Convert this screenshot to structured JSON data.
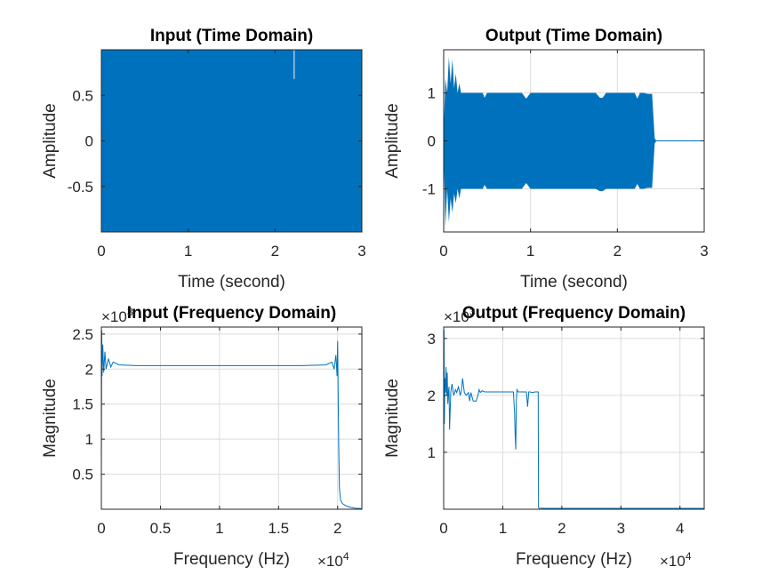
{
  "figure": {
    "background": "#ffffff",
    "series_color": "#0072BD",
    "grid": true
  },
  "chart_data": [
    {
      "id": "input_time",
      "type": "line",
      "title": "Input (Time Domain)",
      "xlabel": "Time (second)",
      "ylabel": "Amplitude",
      "xlim": [
        0,
        3
      ],
      "ylim": [
        -1,
        1
      ],
      "xticks": [
        0,
        1,
        2,
        3
      ],
      "xtick_labels": [
        "0",
        "1",
        "2",
        "3"
      ],
      "yticks": [
        -0.5,
        0,
        0.5
      ],
      "ytick_labels": [
        "-0.5",
        "0",
        "0.5"
      ],
      "x_multiplier": "",
      "y_multiplier": "",
      "envelope": {
        "x": [
          0,
          3
        ],
        "upper": [
          1,
          1
        ],
        "lower": [
          -1,
          -1
        ]
      },
      "spikes": [
        {
          "x": 2.22,
          "top": 0.68,
          "bottom": 1.0
        }
      ]
    },
    {
      "id": "output_time",
      "type": "line",
      "title": "Output (Time Domain)",
      "xlabel": "Time (second)",
      "ylabel": "Amplitude",
      "xlim": [
        0,
        3
      ],
      "ylim": [
        -1.9,
        1.9
      ],
      "xticks": [
        0,
        1,
        2,
        3
      ],
      "xtick_labels": [
        "0",
        "1",
        "2",
        "3"
      ],
      "yticks": [
        -1,
        0,
        1
      ],
      "ytick_labels": [
        "-1",
        "0",
        "1"
      ],
      "x_multiplier": "",
      "y_multiplier": "",
      "envelope": {
        "x": [
          0,
          0.02,
          0.04,
          0.06,
          0.08,
          0.1,
          0.12,
          0.14,
          0.16,
          0.18,
          0.2,
          0.3,
          0.45,
          0.47,
          0.5,
          0.9,
          0.95,
          1.0,
          1.75,
          1.8,
          1.83,
          1.87,
          2.2,
          2.23,
          2.26,
          2.3,
          2.35,
          2.4,
          2.43,
          2.45,
          2.5,
          3.0
        ],
        "upper": [
          0.2,
          1.3,
          1.0,
          1.75,
          1.2,
          1.7,
          1.1,
          1.4,
          1.0,
          1.2,
          1.0,
          1.0,
          1.0,
          0.9,
          1.0,
          1.0,
          0.88,
          1.0,
          1.0,
          0.9,
          0.9,
          1.0,
          1.0,
          0.88,
          1.0,
          1.0,
          0.98,
          0.98,
          0.05,
          0.0,
          0.0,
          0.0
        ],
        "lower": [
          -0.2,
          -1.8,
          -1.0,
          -1.7,
          -1.2,
          -1.5,
          -1.1,
          -1.3,
          -1.0,
          -1.2,
          -1.0,
          -1.0,
          -1.0,
          -0.92,
          -1.0,
          -1.0,
          -0.88,
          -1.0,
          -1.0,
          -1.05,
          -1.05,
          -1.0,
          -1.0,
          -0.9,
          -1.0,
          -1.0,
          -0.98,
          -0.98,
          -0.05,
          0.0,
          0.0,
          0.0
        ]
      }
    },
    {
      "id": "input_freq",
      "type": "line",
      "title": "Input (Frequency Domain)",
      "xlabel": "Frequency (Hz)",
      "ylabel": "Magnitude",
      "xlim": [
        0,
        22050
      ],
      "ylim": [
        0,
        2600
      ],
      "xticks": [
        0,
        5000,
        10000,
        15000,
        20000
      ],
      "xtick_labels": [
        "0",
        "0.5",
        "1",
        "1.5",
        "2"
      ],
      "yticks": [
        500,
        1000,
        1500,
        2000,
        2500
      ],
      "ytick_labels": [
        "0.5",
        "1",
        "1.5",
        "2",
        "2.5"
      ],
      "x_multiplier": "×10",
      "x_multiplier_exp": "4",
      "y_multiplier": "×10",
      "y_multiplier_exp": "3",
      "x": [
        0,
        30,
        60,
        120,
        200,
        300,
        400,
        600,
        800,
        1000,
        1500,
        3000,
        6000,
        10000,
        14000,
        17000,
        19000,
        19500,
        19700,
        19850,
        19950,
        20000,
        20050,
        20100,
        20150,
        20250,
        20400,
        20700,
        21000,
        21500,
        22050
      ],
      "y": [
        600,
        2550,
        1900,
        2350,
        1950,
        2250,
        2000,
        2150,
        2030,
        2100,
        2060,
        2050,
        2050,
        2050,
        2050,
        2050,
        2060,
        2100,
        2000,
        2200,
        1900,
        2400,
        1500,
        800,
        300,
        130,
        80,
        50,
        30,
        15,
        10
      ]
    },
    {
      "id": "output_freq",
      "type": "line",
      "title": "Output (Frequency Domain)",
      "xlabel": "Frequency (Hz)",
      "ylabel": "Magnitude",
      "xlim": [
        0,
        44100
      ],
      "ylim": [
        0,
        3200
      ],
      "xticks": [
        0,
        10000,
        20000,
        30000,
        40000
      ],
      "xtick_labels": [
        "0",
        "1",
        "2",
        "3",
        "4"
      ],
      "yticks": [
        1000,
        2000,
        3000
      ],
      "ytick_labels": [
        "1",
        "2",
        "3"
      ],
      "x_multiplier": "×10",
      "x_multiplier_exp": "4",
      "y_multiplier": "×10",
      "y_multiplier_exp": "3",
      "x": [
        0,
        60,
        120,
        200,
        300,
        400,
        500,
        600,
        700,
        800,
        900,
        1000,
        1200,
        1400,
        1700,
        2000,
        2200,
        2500,
        2800,
        3000,
        3200,
        3500,
        3800,
        4200,
        4400,
        4600,
        5000,
        5500,
        5800,
        6000,
        6200,
        6500,
        7000,
        8000,
        9000,
        10000,
        11000,
        11800,
        12000,
        12100,
        12200,
        12300,
        12400,
        12600,
        13000,
        13500,
        14000,
        14200,
        14400,
        14600,
        15000,
        15500,
        16000,
        16050,
        16200,
        17000,
        20000,
        30000,
        40000,
        44100
      ],
      "y": [
        800,
        3150,
        1500,
        2300,
        2050,
        2500,
        2000,
        2400,
        1850,
        2050,
        2150,
        1400,
        2050,
        2200,
        2000,
        2100,
        2050,
        2150,
        2000,
        2080,
        2300,
        2050,
        2000,
        2050,
        1900,
        2050,
        1900,
        1900,
        2000,
        2100,
        2050,
        2080,
        2060,
        2060,
        2060,
        2060,
        2060,
        2060,
        1700,
        1300,
        1050,
        1900,
        2100,
        2060,
        2060,
        2060,
        2060,
        1800,
        2060,
        2060,
        2050,
        2060,
        2060,
        30,
        20,
        15,
        15,
        15,
        15,
        15
      ]
    }
  ]
}
